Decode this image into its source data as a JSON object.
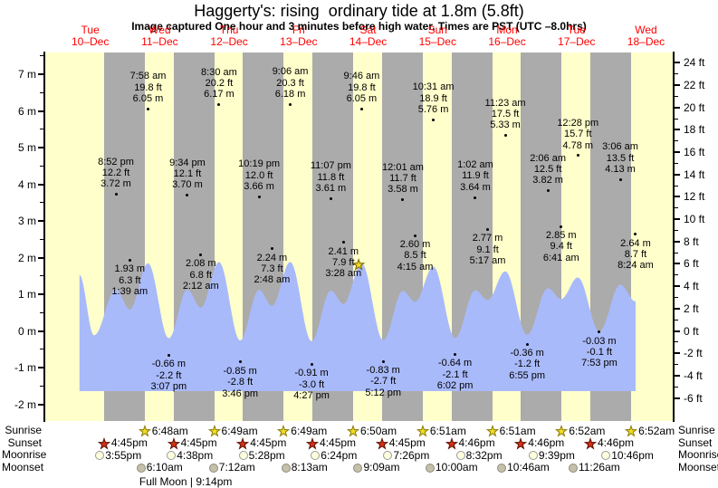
{
  "title": "Haggerty's: rising  ordinary tide at 1.8m (5.8ft)",
  "subtitle": "Image captured One hour and 3 minutes before high water. Times are PST (UTC –8.0hrs)",
  "chart_data": {
    "type": "area",
    "x_axis": {
      "unit": "days",
      "start": "Tue 10-Dec",
      "end": "Wed 18-Dec",
      "range_hours_from_dec10_0000": [
        -3.9,
        213.3
      ]
    },
    "y_axis_left": {
      "unit": "m",
      "min": -2,
      "max": 7,
      "ticks": [
        {
          "v": 7,
          "label": "7 m"
        },
        {
          "v": 6,
          "label": "6 m"
        },
        {
          "v": 5,
          "label": "5 m"
        },
        {
          "v": 4,
          "label": "4 m"
        },
        {
          "v": 3,
          "label": "3 m"
        },
        {
          "v": 2,
          "label": "2 m"
        },
        {
          "v": 1,
          "label": "1 m"
        },
        {
          "v": 0,
          "label": "0 m"
        },
        {
          "v": -1,
          "label": "-1 m"
        },
        {
          "v": -2,
          "label": "-2 m"
        }
      ]
    },
    "y_axis_right": {
      "unit": "ft",
      "min": -6,
      "max": 24,
      "ticks": [
        {
          "v": 24,
          "label": "24 ft"
        },
        {
          "v": 22,
          "label": "22 ft"
        },
        {
          "v": 20,
          "label": "20 ft"
        },
        {
          "v": 18,
          "label": "18 ft"
        },
        {
          "v": 16,
          "label": "16 ft"
        },
        {
          "v": 14,
          "label": "14 ft"
        },
        {
          "v": 12,
          "label": "12 ft"
        },
        {
          "v": 10,
          "label": "10 ft"
        },
        {
          "v": 8,
          "label": "8 ft"
        },
        {
          "v": 6,
          "label": "6 ft"
        },
        {
          "v": 4,
          "label": "4 ft"
        },
        {
          "v": 2,
          "label": "2 ft"
        },
        {
          "v": 0,
          "label": "0 ft"
        },
        {
          "v": -2,
          "label": "-2 ft"
        },
        {
          "v": -4,
          "label": "-4 ft"
        },
        {
          "v": -6,
          "label": "-6 ft"
        }
      ]
    },
    "days": [
      {
        "dow": "Tue",
        "date": "10–Dec",
        "t_noon": 12
      },
      {
        "dow": "Wed",
        "date": "11–Dec",
        "t_noon": 36
      },
      {
        "dow": "Thu",
        "date": "12–Dec",
        "t_noon": 60
      },
      {
        "dow": "Fri",
        "date": "13–Dec",
        "t_noon": 84
      },
      {
        "dow": "Sat",
        "date": "14–Dec",
        "t_noon": 108
      },
      {
        "dow": "Sun",
        "date": "15–Dec",
        "t_noon": 132
      },
      {
        "dow": "Mon",
        "date": "16–Dec",
        "t_noon": 156
      },
      {
        "dow": "Tue",
        "date": "17–Dec",
        "t_noon": 180
      },
      {
        "dow": "Wed",
        "date": "18–Dec",
        "t_noon": 204
      }
    ],
    "night_bands_t": [
      [
        16.75,
        30.8
      ],
      [
        40.75,
        54.82
      ],
      [
        64.75,
        78.82
      ],
      [
        88.75,
        102.83
      ],
      [
        112.75,
        126.85
      ],
      [
        136.77,
        150.85
      ],
      [
        160.77,
        174.87
      ],
      [
        184.77,
        198.87
      ]
    ],
    "curve_lead_in": [
      {
        "t": 8.3,
        "h": 5.0
      },
      {
        "t": 13.3,
        "h": -0.4
      }
    ],
    "tide_events": [
      {
        "t": 20.867,
        "h": 3.72,
        "kind": "high",
        "time": "8:52 pm",
        "ft": "12.2 ft",
        "m": "3.72 m"
      },
      {
        "t": 25.65,
        "h": 1.93,
        "kind": "low",
        "time": "1:39 am",
        "ft": "6.3 ft",
        "m": "1.93 m"
      },
      {
        "t": 31.967,
        "h": 6.05,
        "kind": "high",
        "time": "7:58 am",
        "ft": "19.8 ft",
        "m": "6.05 m"
      },
      {
        "t": 39.117,
        "h": -0.66,
        "kind": "low",
        "time": "3:07 pm",
        "ft": "-2.2 ft",
        "m": "-0.66 m"
      },
      {
        "t": 45.567,
        "h": 3.7,
        "kind": "high",
        "time": "9:34 pm",
        "ft": "12.1 ft",
        "m": "3.70 m"
      },
      {
        "t": 50.2,
        "h": 2.08,
        "kind": "low",
        "time": "2:12 am",
        "ft": "6.8 ft",
        "m": "2.08 m"
      },
      {
        "t": 56.5,
        "h": 6.17,
        "kind": "high",
        "time": "8:30 am",
        "ft": "20.2 ft",
        "m": "6.17 m"
      },
      {
        "t": 63.767,
        "h": -0.85,
        "kind": "low",
        "time": "3:46 pm",
        "ft": "-2.8 ft",
        "m": "-0.85 m"
      },
      {
        "t": 70.317,
        "h": 3.66,
        "kind": "high",
        "time": "10:19 pm",
        "ft": "12.0 ft",
        "m": "3.66 m"
      },
      {
        "t": 74.8,
        "h": 2.24,
        "kind": "low",
        "time": "2:48 am",
        "ft": "7.3 ft",
        "m": "2.24 m"
      },
      {
        "t": 81.1,
        "h": 6.18,
        "kind": "high",
        "time": "9:06 am",
        "ft": "20.3 ft",
        "m": "6.18 m"
      },
      {
        "t": 88.45,
        "h": -0.91,
        "kind": "low",
        "time": "4:27 pm",
        "ft": "-3.0 ft",
        "m": "-0.91 m"
      },
      {
        "t": 95.117,
        "h": 3.61,
        "kind": "high",
        "time": "11:07 pm",
        "ft": "11.8 ft",
        "m": "3.61 m"
      },
      {
        "t": 99.467,
        "h": 2.41,
        "kind": "low",
        "time": "3:28 am",
        "ft": "7.9 ft",
        "m": "2.41 m"
      },
      {
        "t": 105.767,
        "h": 6.05,
        "kind": "high",
        "time": "9:46 am",
        "ft": "19.8 ft",
        "m": "6.05 m"
      },
      {
        "t": 113.2,
        "h": -0.83,
        "kind": "low",
        "time": "5:12 pm",
        "ft": "-2.7 ft",
        "m": "-0.83 m"
      },
      {
        "t": 120.017,
        "h": 3.58,
        "kind": "high",
        "time": "12:01 am",
        "ft": "11.7 ft",
        "m": "3.58 m"
      },
      {
        "t": 124.25,
        "h": 2.6,
        "kind": "low",
        "time": "4:15 am",
        "ft": "8.5 ft",
        "m": "2.60 m"
      },
      {
        "t": 130.517,
        "h": 5.76,
        "kind": "high",
        "time": "10:31 am",
        "ft": "18.9 ft",
        "m": "5.76 m"
      },
      {
        "t": 138.033,
        "h": -0.64,
        "kind": "low",
        "time": "6:02 pm",
        "ft": "-2.1 ft",
        "m": "-0.64 m"
      },
      {
        "t": 145.033,
        "h": 3.64,
        "kind": "high",
        "time": "1:02 am",
        "ft": "11.9 ft",
        "m": "3.64 m"
      },
      {
        "t": 149.283,
        "h": 2.77,
        "kind": "low",
        "time": "5:17 am",
        "ft": "9.1 ft",
        "m": "2.77 m"
      },
      {
        "t": 155.383,
        "h": 5.33,
        "kind": "high",
        "time": "11:23 am",
        "ft": "17.5 ft",
        "m": "5.33 m"
      },
      {
        "t": 162.917,
        "h": -0.36,
        "kind": "low",
        "time": "6:55 pm",
        "ft": "-1.2 ft",
        "m": "-0.36 m"
      },
      {
        "t": 170.1,
        "h": 3.82,
        "kind": "high",
        "time": "2:06 am",
        "ft": "12.5 ft",
        "m": "3.82 m"
      },
      {
        "t": 174.683,
        "h": 2.85,
        "kind": "low",
        "time": "6:41 am",
        "ft": "9.4 ft",
        "m": "2.85 m"
      },
      {
        "t": 180.467,
        "h": 4.78,
        "kind": "high",
        "time": "12:28 pm",
        "ft": "15.7 ft",
        "m": "4.78 m"
      },
      {
        "t": 187.883,
        "h": -0.03,
        "kind": "low",
        "time": "7:53 pm",
        "ft": "-0.1 ft",
        "m": "-0.03 m"
      },
      {
        "t": 195.1,
        "h": 4.13,
        "kind": "high",
        "time": "3:06 am",
        "ft": "13.5 ft",
        "m": "4.13 m"
      },
      {
        "t": 200.4,
        "h": 2.64,
        "kind": "low",
        "time": "8:24 am",
        "ft": "8.7 ft",
        "m": "2.64 m"
      }
    ],
    "capture_marker": {
      "t": 104.72,
      "level_m": 1.8
    },
    "sun_moon": {
      "row_labels": [
        "Sunrise",
        "Sunset",
        "Moonrise",
        "Moonset"
      ],
      "sunrise": [
        {
          "t": 30.8,
          "time": "6:48am"
        },
        {
          "t": 54.82,
          "time": "6:49am"
        },
        {
          "t": 78.82,
          "time": "6:49am"
        },
        {
          "t": 102.83,
          "time": "6:50am"
        },
        {
          "t": 126.85,
          "time": "6:51am"
        },
        {
          "t": 150.85,
          "time": "6:51am"
        },
        {
          "t": 174.87,
          "time": "6:52am"
        },
        {
          "t": 198.87,
          "time": "6:52am"
        }
      ],
      "sunset": [
        {
          "t": 16.75,
          "time": "4:45pm"
        },
        {
          "t": 40.75,
          "time": "4:45pm"
        },
        {
          "t": 64.75,
          "time": "4:45pm"
        },
        {
          "t": 88.75,
          "time": "4:45pm"
        },
        {
          "t": 112.75,
          "time": "4:45pm"
        },
        {
          "t": 136.77,
          "time": "4:46pm"
        },
        {
          "t": 160.77,
          "time": "4:46pm"
        },
        {
          "t": 184.77,
          "time": "4:46pm"
        }
      ],
      "moonrise": [
        {
          "t": 15.92,
          "time": "3:55pm"
        },
        {
          "t": 40.63,
          "time": "4:38pm"
        },
        {
          "t": 65.47,
          "time": "5:28pm"
        },
        {
          "t": 90.4,
          "time": "6:24pm"
        },
        {
          "t": 115.43,
          "time": "7:26pm"
        },
        {
          "t": 140.53,
          "time": "8:32pm"
        },
        {
          "t": 165.65,
          "time": "9:39pm"
        },
        {
          "t": 190.77,
          "time": "10:46pm"
        }
      ],
      "moonset": [
        {
          "t": 30.17,
          "time": "6:10am"
        },
        {
          "t": 55.2,
          "time": "7:12am"
        },
        {
          "t": 80.22,
          "time": "8:13am"
        },
        {
          "t": 105.15,
          "time": "9:09am"
        },
        {
          "t": 130.0,
          "time": "10:00am"
        },
        {
          "t": 154.77,
          "time": "10:46am"
        },
        {
          "t": 179.43,
          "time": "11:26am"
        }
      ],
      "full_moon": {
        "t": 45.23,
        "text": "Full Moon | 9:14pm"
      }
    },
    "colors": {
      "day_band": "#ffffcb",
      "night_band": "#ababab",
      "tide_fill": "#a9bafa",
      "date_label": "#ff0000",
      "sunrise_star": "#f0dc28",
      "sunset_star": "#d73016",
      "moonrise_fill": "#ffffdd",
      "moonset_fill": "#c4c0aa",
      "marker_star": "#f4d820"
    }
  }
}
